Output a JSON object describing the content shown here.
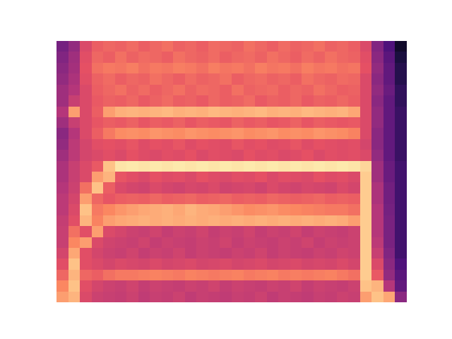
{
  "chart_data": {
    "type": "heatmap",
    "tick_labels": false,
    "zlim": [
      0,
      1
    ],
    "cells": [
      [
        0.35,
        0.42,
        0.6,
        0.66,
        0.68,
        0.67,
        0.69,
        0.66,
        0.68,
        0.7,
        0.67,
        0.68,
        0.66,
        0.69,
        0.68,
        0.67,
        0.7,
        0.68,
        0.66,
        0.69,
        0.67,
        0.68,
        0.7,
        0.67,
        0.68,
        0.66,
        0.6,
        0.38,
        0.25,
        0.08
      ],
      [
        0.38,
        0.45,
        0.62,
        0.68,
        0.66,
        0.7,
        0.67,
        0.69,
        0.68,
        0.66,
        0.7,
        0.68,
        0.67,
        0.69,
        0.66,
        0.68,
        0.69,
        0.67,
        0.7,
        0.68,
        0.66,
        0.69,
        0.67,
        0.7,
        0.68,
        0.67,
        0.62,
        0.4,
        0.28,
        0.12
      ],
      [
        0.4,
        0.46,
        0.63,
        0.7,
        0.72,
        0.71,
        0.73,
        0.7,
        0.72,
        0.71,
        0.73,
        0.72,
        0.7,
        0.73,
        0.71,
        0.72,
        0.7,
        0.73,
        0.71,
        0.72,
        0.7,
        0.73,
        0.71,
        0.72,
        0.7,
        0.71,
        0.63,
        0.42,
        0.3,
        0.15
      ],
      [
        0.42,
        0.48,
        0.62,
        0.67,
        0.69,
        0.66,
        0.68,
        0.67,
        0.7,
        0.68,
        0.66,
        0.69,
        0.67,
        0.68,
        0.7,
        0.66,
        0.68,
        0.69,
        0.67,
        0.68,
        0.66,
        0.7,
        0.68,
        0.67,
        0.69,
        0.68,
        0.6,
        0.4,
        0.3,
        0.15
      ],
      [
        0.45,
        0.5,
        0.6,
        0.66,
        0.68,
        0.7,
        0.67,
        0.69,
        0.66,
        0.68,
        0.7,
        0.67,
        0.69,
        0.68,
        0.66,
        0.7,
        0.67,
        0.68,
        0.69,
        0.66,
        0.68,
        0.67,
        0.7,
        0.68,
        0.66,
        0.67,
        0.6,
        0.42,
        0.32,
        0.18
      ],
      [
        0.45,
        0.55,
        0.6,
        0.65,
        0.67,
        0.66,
        0.68,
        0.65,
        0.67,
        0.69,
        0.66,
        0.67,
        0.65,
        0.68,
        0.66,
        0.67,
        0.69,
        0.65,
        0.67,
        0.66,
        0.68,
        0.65,
        0.67,
        0.66,
        0.68,
        0.66,
        0.6,
        0.4,
        0.3,
        0.18
      ],
      [
        0.5,
        0.8,
        0.6,
        0.66,
        0.8,
        0.84,
        0.85,
        0.84,
        0.85,
        0.86,
        0.84,
        0.85,
        0.84,
        0.86,
        0.85,
        0.84,
        0.85,
        0.86,
        0.84,
        0.85,
        0.84,
        0.86,
        0.85,
        0.84,
        0.85,
        0.82,
        0.6,
        0.42,
        0.3,
        0.2
      ],
      [
        0.45,
        0.55,
        0.6,
        0.64,
        0.66,
        0.65,
        0.67,
        0.64,
        0.66,
        0.65,
        0.67,
        0.64,
        0.66,
        0.65,
        0.64,
        0.67,
        0.65,
        0.66,
        0.64,
        0.65,
        0.67,
        0.64,
        0.66,
        0.65,
        0.64,
        0.65,
        0.6,
        0.42,
        0.3,
        0.2
      ],
      [
        0.4,
        0.5,
        0.6,
        0.66,
        0.72,
        0.76,
        0.77,
        0.76,
        0.78,
        0.77,
        0.76,
        0.78,
        0.77,
        0.76,
        0.77,
        0.78,
        0.76,
        0.77,
        0.78,
        0.76,
        0.77,
        0.76,
        0.78,
        0.77,
        0.76,
        0.74,
        0.6,
        0.4,
        0.3,
        0.2
      ],
      [
        0.42,
        0.52,
        0.58,
        0.62,
        0.63,
        0.62,
        0.64,
        0.61,
        0.63,
        0.62,
        0.64,
        0.61,
        0.63,
        0.62,
        0.61,
        0.64,
        0.62,
        0.63,
        0.61,
        0.62,
        0.64,
        0.61,
        0.63,
        0.62,
        0.61,
        0.62,
        0.58,
        0.4,
        0.3,
        0.2
      ],
      [
        0.45,
        0.52,
        0.58,
        0.6,
        0.62,
        0.6,
        0.63,
        0.61,
        0.6,
        0.62,
        0.61,
        0.63,
        0.6,
        0.62,
        0.61,
        0.6,
        0.63,
        0.61,
        0.62,
        0.6,
        0.61,
        0.63,
        0.6,
        0.62,
        0.61,
        0.62,
        0.6,
        0.42,
        0.3,
        0.2
      ],
      [
        0.48,
        0.55,
        0.6,
        0.65,
        0.88,
        0.95,
        0.96,
        0.95,
        0.96,
        0.95,
        0.96,
        0.95,
        0.96,
        0.95,
        0.96,
        0.95,
        0.96,
        0.95,
        0.96,
        0.95,
        0.96,
        0.95,
        0.96,
        0.95,
        0.96,
        0.95,
        0.92,
        0.45,
        0.32,
        0.22
      ],
      [
        0.48,
        0.55,
        0.6,
        0.8,
        0.85,
        0.64,
        0.62,
        0.6,
        0.63,
        0.61,
        0.62,
        0.6,
        0.63,
        0.61,
        0.6,
        0.62,
        0.61,
        0.63,
        0.6,
        0.62,
        0.61,
        0.6,
        0.63,
        0.61,
        0.62,
        0.6,
        0.9,
        0.45,
        0.32,
        0.22
      ],
      [
        0.5,
        0.56,
        0.7,
        0.88,
        0.66,
        0.6,
        0.58,
        0.57,
        0.6,
        0.58,
        0.57,
        0.59,
        0.58,
        0.6,
        0.57,
        0.58,
        0.59,
        0.57,
        0.6,
        0.58,
        0.57,
        0.59,
        0.58,
        0.57,
        0.6,
        0.58,
        0.9,
        0.48,
        0.34,
        0.22
      ],
      [
        0.52,
        0.58,
        0.8,
        0.68,
        0.64,
        0.66,
        0.67,
        0.66,
        0.68,
        0.66,
        0.67,
        0.68,
        0.66,
        0.67,
        0.68,
        0.66,
        0.67,
        0.66,
        0.68,
        0.67,
        0.66,
        0.67,
        0.68,
        0.66,
        0.67,
        0.66,
        0.9,
        0.48,
        0.34,
        0.22
      ],
      [
        0.52,
        0.6,
        0.88,
        0.72,
        0.75,
        0.78,
        0.8,
        0.82,
        0.83,
        0.84,
        0.82,
        0.85,
        0.83,
        0.82,
        0.8,
        0.78,
        0.76,
        0.77,
        0.78,
        0.76,
        0.75,
        0.74,
        0.73,
        0.72,
        0.72,
        0.7,
        0.9,
        0.5,
        0.35,
        0.22
      ],
      [
        0.54,
        0.62,
        0.85,
        0.74,
        0.8,
        0.82,
        0.83,
        0.84,
        0.83,
        0.84,
        0.83,
        0.84,
        0.83,
        0.84,
        0.83,
        0.84,
        0.83,
        0.84,
        0.83,
        0.84,
        0.83,
        0.84,
        0.83,
        0.84,
        0.83,
        0.8,
        0.9,
        0.5,
        0.36,
        0.22
      ],
      [
        0.55,
        0.7,
        0.62,
        0.8,
        0.6,
        0.58,
        0.56,
        0.55,
        0.57,
        0.54,
        0.56,
        0.55,
        0.57,
        0.54,
        0.56,
        0.55,
        0.57,
        0.54,
        0.56,
        0.55,
        0.57,
        0.54,
        0.56,
        0.55,
        0.54,
        0.56,
        0.9,
        0.5,
        0.36,
        0.22
      ],
      [
        0.55,
        0.75,
        0.8,
        0.6,
        0.57,
        0.56,
        0.55,
        0.57,
        0.54,
        0.56,
        0.55,
        0.54,
        0.56,
        0.55,
        0.57,
        0.54,
        0.56,
        0.55,
        0.54,
        0.56,
        0.55,
        0.57,
        0.54,
        0.56,
        0.55,
        0.56,
        0.9,
        0.52,
        0.36,
        0.22
      ],
      [
        0.58,
        0.82,
        0.62,
        0.58,
        0.56,
        0.55,
        0.57,
        0.54,
        0.56,
        0.55,
        0.57,
        0.54,
        0.56,
        0.55,
        0.54,
        0.56,
        0.55,
        0.57,
        0.54,
        0.56,
        0.55,
        0.54,
        0.56,
        0.55,
        0.57,
        0.56,
        0.9,
        0.55,
        0.38,
        0.22
      ],
      [
        0.62,
        0.88,
        0.62,
        0.6,
        0.58,
        0.6,
        0.59,
        0.58,
        0.6,
        0.58,
        0.59,
        0.6,
        0.58,
        0.59,
        0.6,
        0.58,
        0.59,
        0.6,
        0.58,
        0.59,
        0.6,
        0.58,
        0.59,
        0.58,
        0.6,
        0.58,
        0.9,
        0.6,
        0.4,
        0.25
      ],
      [
        0.68,
        0.85,
        0.68,
        0.66,
        0.7,
        0.72,
        0.72,
        0.73,
        0.74,
        0.73,
        0.72,
        0.74,
        0.73,
        0.72,
        0.73,
        0.74,
        0.72,
        0.73,
        0.74,
        0.72,
        0.73,
        0.72,
        0.73,
        0.74,
        0.72,
        0.7,
        0.9,
        0.65,
        0.42,
        0.28
      ],
      [
        0.75,
        0.88,
        0.62,
        0.58,
        0.56,
        0.55,
        0.57,
        0.54,
        0.56,
        0.55,
        0.54,
        0.56,
        0.55,
        0.57,
        0.54,
        0.56,
        0.55,
        0.54,
        0.56,
        0.55,
        0.57,
        0.54,
        0.56,
        0.55,
        0.54,
        0.56,
        0.88,
        0.85,
        0.5,
        0.3
      ],
      [
        0.8,
        0.85,
        0.6,
        0.56,
        0.55,
        0.54,
        0.56,
        0.53,
        0.55,
        0.54,
        0.56,
        0.53,
        0.55,
        0.54,
        0.53,
        0.55,
        0.54,
        0.56,
        0.53,
        0.55,
        0.54,
        0.53,
        0.55,
        0.54,
        0.56,
        0.55,
        0.8,
        0.88,
        0.82,
        0.4
      ]
    ]
  }
}
